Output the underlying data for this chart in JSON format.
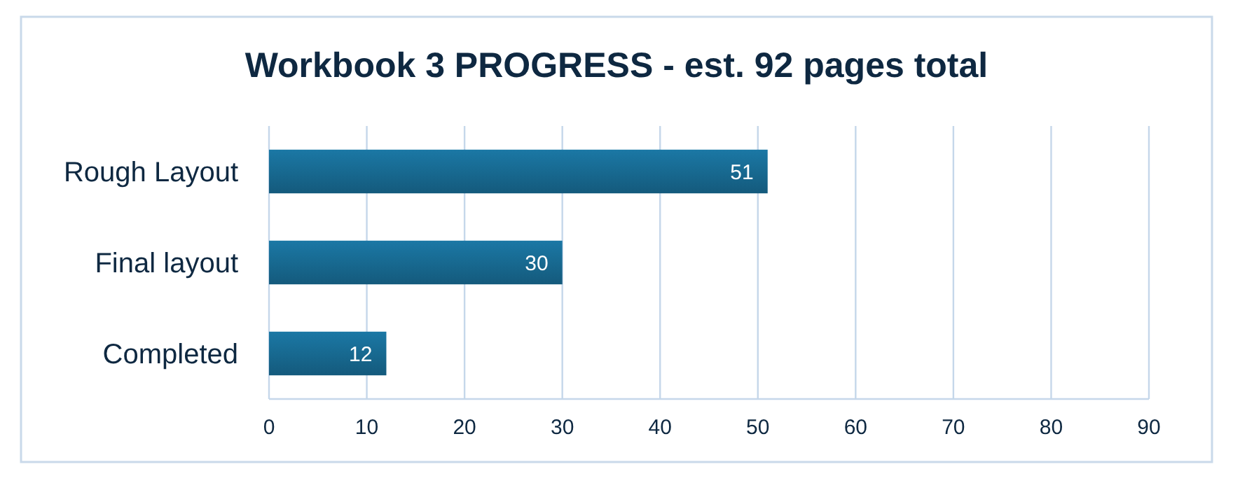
{
  "chart_data": {
    "type": "bar",
    "orientation": "horizontal",
    "title": "Workbook 3 PROGRESS - est. 92 pages total",
    "categories": [
      "Rough Layout",
      "Final layout",
      "Completed"
    ],
    "values": [
      51,
      30,
      12
    ],
    "color": "#145a7c",
    "xlim": [
      0,
      90
    ],
    "xticks": [
      0,
      10,
      20,
      30,
      40,
      50,
      60,
      70,
      80,
      90
    ],
    "grid": "x",
    "data_labels": true
  }
}
